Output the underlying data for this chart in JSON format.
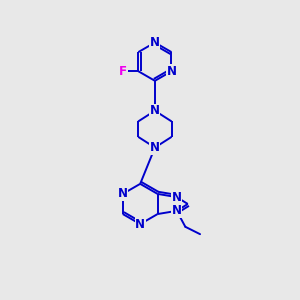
{
  "background_color": "#e8e8e8",
  "bond_color": "#0000cc",
  "N_color": "#0000cc",
  "F_color": "#ee00ee",
  "line_width": 1.4,
  "font_size": 8.5,
  "fig_size": [
    3.0,
    3.0
  ],
  "dpi": 100,
  "xlim": [
    0,
    10
  ],
  "ylim": [
    0,
    12
  ]
}
